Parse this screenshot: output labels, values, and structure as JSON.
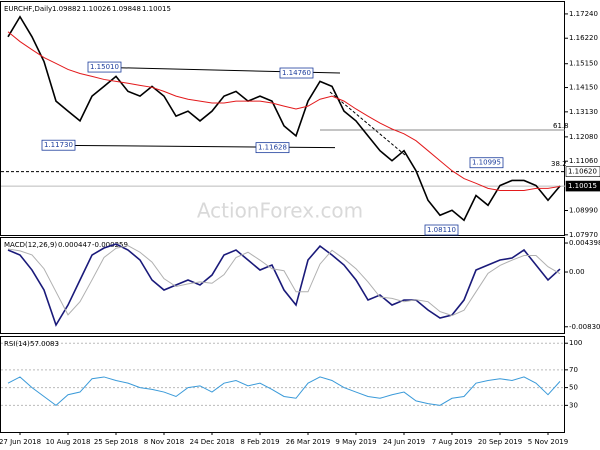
{
  "chart_data": [
    {
      "type": "line",
      "title": "EURCHF,Daily",
      "ohlc": [
        1.09882,
        1.10026,
        1.09848,
        1.10015
      ],
      "watermark": "ActionForex.com",
      "ylim": [
        1.0792,
        1.1774
      ],
      "yticks": [
        {
          "value": 1.1724,
          "label": "1.17240"
        },
        {
          "value": 1.1622,
          "label": "1.16220"
        },
        {
          "value": 1.1515,
          "label": "1.15150"
        },
        {
          "value": 1.1415,
          "label": "1.14150"
        },
        {
          "value": 1.1313,
          "label": "1.13130"
        },
        {
          "value": 1.1208,
          "label": "1.12080"
        },
        {
          "value": 1.1106,
          "label": "1.11060"
        },
        {
          "value": 1.0899,
          "label": "1.08990"
        },
        {
          "value": 1.0797,
          "label": "1.07970"
        }
      ],
      "price_markers": [
        {
          "value": 1.1062,
          "label": "1.10620"
        },
        1.10015
      ],
      "annotations": [
        {
          "value": 1.1501,
          "label": "1.15010"
        },
        {
          "value": 1.1476,
          "label": "1.14760"
        },
        {
          "value": 1.1173,
          "label": "1.11730"
        },
        {
          "value": 1.11628,
          "label": "1.11628"
        },
        {
          "value": 1.10995,
          "label": "1.10995"
        },
        {
          "value": 1.0811,
          "label": "1.08110"
        }
      ],
      "fib_labels": [
        61.8,
        38.2
      ],
      "series": [
        {
          "color": "#000000",
          "values": [
            1.1628,
            1.1712,
            1.1628,
            1.1524,
            1.1358,
            1.1316,
            1.1275,
            1.1379,
            1.142,
            1.1462,
            1.1399,
            1.1379,
            1.142,
            1.1379,
            1.1295,
            1.1316,
            1.1275,
            1.1316,
            1.1379,
            1.1399,
            1.1358,
            1.1379,
            1.1358,
            1.1254,
            1.1212,
            1.1358,
            1.1441,
            1.142,
            1.1316,
            1.1275,
            1.1212,
            1.115,
            1.1108,
            1.115,
            1.1066,
            1.0942,
            1.0879,
            1.09,
            1.0858,
            1.0962,
            1.0921,
            1.1004,
            1.1025,
            1.1025,
            1.1004,
            1.0942,
            1.1002
          ]
        },
        {
          "color": "#e31a1c",
          "values": [
            1.1649,
            1.1608,
            1.1574,
            1.1541,
            1.1516,
            1.1491,
            1.1474,
            1.1462,
            1.1449,
            1.1441,
            1.1433,
            1.1424,
            1.1416,
            1.1399,
            1.1379,
            1.1366,
            1.1358,
            1.135,
            1.135,
            1.1358,
            1.1358,
            1.1358,
            1.135,
            1.1337,
            1.1325,
            1.1337,
            1.1366,
            1.1379,
            1.1358,
            1.1325,
            1.1295,
            1.1266,
            1.1241,
            1.1221,
            1.1192,
            1.115,
            1.1108,
            1.1066,
            1.1033,
            1.1013,
            1.0992,
            1.0983,
            1.0983,
            1.0983,
            1.0992,
            1.0992,
            1.1
          ]
        }
      ]
    },
    {
      "type": "line",
      "title": "MACD(12,26,9)",
      "header_values": [
        0.000447,
        -0.000259
      ],
      "ylim": [
        -0.00925,
        0.00516
      ],
      "yticks": [
        0.004398,
        {
          "value": 0,
          "label": "0.00"
        },
        -0.008306
      ],
      "series": [
        {
          "color": "#1a1a7a",
          "values": [
            0.00334,
            0.00258,
            0.0003,
            -0.00273,
            -0.00804,
            -0.00501,
            -0.00121,
            0.00258,
            0.00364,
            0.00425,
            0.00334,
            0.00182,
            -0.00121,
            -0.00273,
            -0.00197,
            -0.00121,
            -0.00197,
            -0.00046,
            0.00258,
            0.00334,
            0.00182,
            0.0003,
            0.00106,
            -0.00273,
            -0.00501,
            0.00182,
            0.00394,
            0.00258,
            0.00106,
            -0.00121,
            -0.00425,
            -0.00349,
            -0.00501,
            -0.00425,
            -0.00425,
            -0.00576,
            -0.00698,
            -0.00652,
            -0.00425,
            0.0003,
            0.00106,
            0.00182,
            0.00212,
            0.00334,
            0.00106,
            -0.00121,
            0.000447
          ]
        },
        {
          "color": "#b0b0b0",
          "values": [
            0.0035,
            0.0032,
            0.0026,
            0.0005,
            -0.003,
            -0.0065,
            -0.0045,
            -0.0012,
            0.0022,
            0.0036,
            0.004,
            0.003,
            0.0015,
            -0.001,
            -0.0022,
            -0.0018,
            -0.0015,
            -0.0017,
            -0.0004,
            0.0022,
            0.003,
            0.0018,
            0.0005,
            0.0002,
            -0.003,
            -0.003,
            0.0012,
            0.0033,
            0.002,
            0.0005,
            -0.0015,
            -0.0038,
            -0.004,
            -0.0045,
            -0.0042,
            -0.0045,
            -0.006,
            -0.0066,
            -0.0058,
            -0.003,
            -0.0002,
            0.001,
            0.0018,
            0.0025,
            0.0025,
            0.0008,
            -0.000259
          ]
        }
      ]
    },
    {
      "type": "line",
      "title": "RSI(14)",
      "header_values": [
        57.0083
      ],
      "ylim": [
        0,
        107
      ],
      "yticks": [
        100,
        70,
        50,
        30
      ],
      "categories": [
        null,
        "27 Jun 2018",
        null,
        null,
        null,
        "10 Aug 2018",
        null,
        null,
        null,
        "25 Sep 2018",
        null,
        null,
        null,
        "8 Nov 2018",
        null,
        null,
        null,
        "24 Dec 2018",
        null,
        null,
        null,
        "8 Feb 2019",
        null,
        null,
        null,
        "26 Mar 2019",
        null,
        null,
        null,
        "9 May 2019",
        null,
        null,
        null,
        "24 Jun 2019",
        null,
        null,
        null,
        "7 Aug 2019",
        null,
        null,
        null,
        "20 Sep 2019",
        null,
        null,
        null,
        "5 Nov 2019",
        null
      ],
      "series": [
        {
          "color": "#3a9ad9",
          "values": [
            55,
            62,
            50,
            40,
            30,
            42,
            45,
            60,
            62,
            58,
            55,
            50,
            48,
            45,
            40,
            50,
            52,
            45,
            55,
            58,
            52,
            55,
            48,
            40,
            38,
            55,
            62,
            58,
            50,
            45,
            40,
            38,
            42,
            45,
            35,
            32,
            30,
            38,
            40,
            55,
            58,
            60,
            58,
            62,
            55,
            42,
            57.0083
          ]
        }
      ]
    }
  ]
}
